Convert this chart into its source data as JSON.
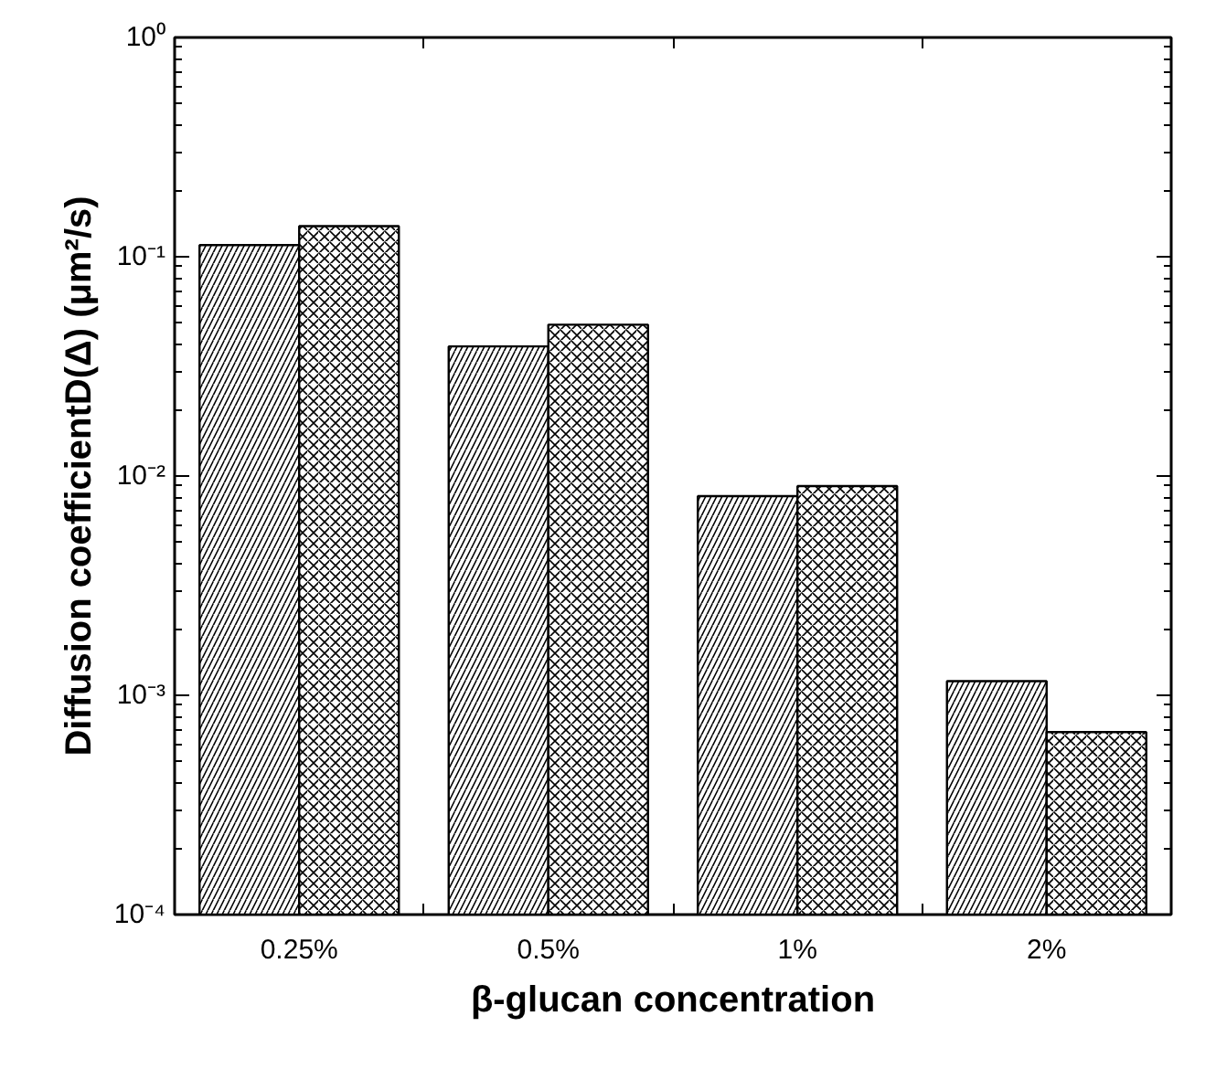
{
  "chart_data": {
    "type": "bar",
    "xlabel": "β-glucan concentration",
    "ylabel": "Diffusion coefficientD(Δ) (μm²/s)",
    "categories": [
      "0.25%",
      "0.5%",
      "1%",
      "2%"
    ],
    "series": [
      {
        "color": "#ffffff",
        "values": [
          0.113,
          0.039,
          0.0081,
          0.00116
        ]
      },
      {
        "color": "#ffffff",
        "values": [
          0.138,
          0.049,
          0.009,
          0.00068
        ]
      }
    ],
    "log": "y",
    "ylim": [
      0.0001,
      1
    ],
    "yticks": [
      {
        "value": 0.0001,
        "label": "10⁻⁴"
      },
      {
        "value": 0.001,
        "label": "10⁻³"
      },
      {
        "value": 0.01,
        "label": "10⁻²"
      },
      {
        "value": 0.1,
        "label": "10⁻¹"
      },
      {
        "value": 1,
        "label": "10⁰"
      }
    ]
  }
}
